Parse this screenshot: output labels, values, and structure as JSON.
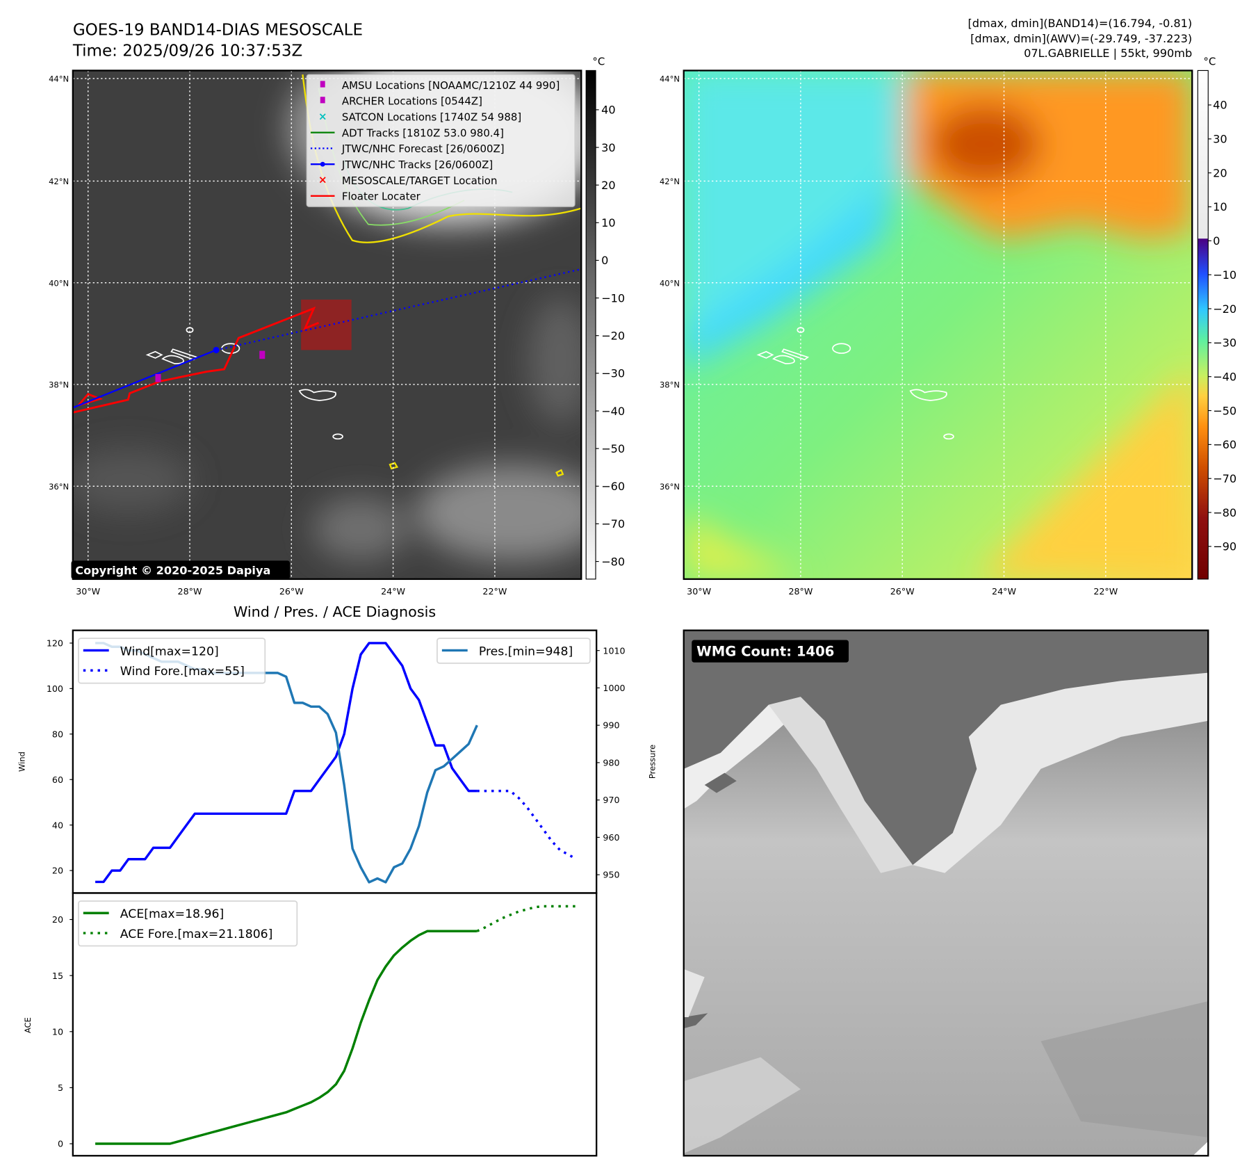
{
  "header": {
    "title": "GOES-19 BAND14-DIAS MESOSCALE",
    "time": "Time: 2025/09/26 10:37:53Z",
    "stats_band14": "[dmax, dmin](BAND14)=(16.794, -0.81)",
    "stats_awv": "[dmax, dmin](AWV)=(-29.749, -37.223)",
    "storm": "07L.GABRIELLE | 55kt, 990mb"
  },
  "maps": {
    "lat_labels": [
      "44°N",
      "42°N",
      "40°N",
      "38°N",
      "36°N"
    ],
    "lon_labels": [
      "30°W",
      "28°W",
      "26°W",
      "24°W",
      "22°W"
    ],
    "unit": "°C",
    "colorbar_left_ticks": [
      "40",
      "30",
      "20",
      "10",
      "0",
      "−10",
      "−20",
      "−30",
      "−40",
      "−50",
      "−60",
      "−70",
      "−80"
    ],
    "colorbar_right_ticks": [
      "40",
      "30",
      "20",
      "10",
      "0",
      "−10",
      "−20",
      "−30",
      "−40",
      "−50",
      "−60",
      "−70",
      "−80",
      "−90"
    ],
    "copyright": "Copyright © 2020-2025 Dapiya",
    "legend": [
      {
        "label": "AMSU Locations [NOAAMC/1210Z 44 990]",
        "color": "#c000c0",
        "marker": "square"
      },
      {
        "label": "ARCHER Locations [0544Z]",
        "color": "#c000c0",
        "marker": "square"
      },
      {
        "label": "SATCON Locations [1740Z 54 988]",
        "color": "#00bfbf",
        "marker": "x"
      },
      {
        "label": "ADT Tracks [1810Z 53.0 980.4]",
        "color": "#008000",
        "marker": "line"
      },
      {
        "label": "JTWC/NHC Forecast [26/0600Z]",
        "color": "#0000ff",
        "marker": "dotted"
      },
      {
        "label": "JTWC/NHC Tracks [26/0600Z]",
        "color": "#0000ff",
        "marker": "line-dot"
      },
      {
        "label": "MESOSCALE/TARGET Location",
        "color": "#ff0000",
        "marker": "x"
      },
      {
        "label": "Floater Locater",
        "color": "#ff0000",
        "marker": "line"
      }
    ]
  },
  "wmg": {
    "label": "WMG Count: 1406"
  },
  "chart_data": [
    {
      "type": "line",
      "title": "Wind / Pres. / ACE Diagnosis",
      "ylabel": "Wind",
      "y2label": "Pressure",
      "ylim": [
        10.1,
        125.6
      ],
      "y2lim": [
        945.1,
        1015.4
      ],
      "xlim": [
        -2.7,
        60.4
      ],
      "yticks": [
        20,
        40,
        60,
        80,
        100,
        120
      ],
      "y2ticks": [
        950,
        960,
        970,
        980,
        990,
        1000,
        1010
      ],
      "series": [
        {
          "name": "Wind[max=120]",
          "color": "#0000ff",
          "style": "solid",
          "axis": "left",
          "x0": 0,
          "values": [
            15,
            15,
            20,
            20,
            25,
            25,
            25,
            30,
            30,
            30,
            35,
            40,
            45,
            45,
            45,
            45,
            45,
            45,
            45,
            45,
            45,
            45,
            45,
            45,
            55,
            55,
            55,
            60,
            65,
            70,
            80,
            100,
            115,
            120,
            120,
            120,
            115,
            110,
            100,
            95,
            85,
            75,
            75,
            65,
            60,
            55,
            55
          ]
        },
        {
          "name": "Wind Fore.[max=55]",
          "color": "#0000ff",
          "style": "dotted",
          "axis": "left",
          "x0": 46,
          "values": [
            55,
            55,
            55,
            55,
            55,
            52,
            48,
            43,
            38,
            33,
            29,
            27,
            25
          ]
        },
        {
          "name": "Pres.[min=948]",
          "color": "#1f77b4",
          "style": "solid",
          "axis": "right",
          "x0": 0,
          "values": [
            1012,
            1012,
            1011,
            1011,
            1010,
            1010,
            1009,
            1008,
            1007,
            1007,
            1007,
            1006,
            1005,
            1005,
            1004,
            1004,
            1004,
            1004,
            1004,
            1004,
            1004,
            1004,
            1004,
            1003,
            996,
            996,
            995,
            995,
            993,
            988,
            974,
            957,
            952,
            948,
            949,
            948,
            952,
            953,
            957,
            963,
            972,
            978,
            979,
            981,
            983,
            985,
            990
          ]
        }
      ]
    },
    {
      "type": "line",
      "ylabel": "ACE",
      "ylim": [
        -1.07,
        22.36
      ],
      "xlim": [
        -2.7,
        60.4
      ],
      "yticks": [
        0,
        5,
        10,
        15,
        20
      ],
      "series": [
        {
          "name": "ACE[max=18.96]",
          "color": "#008000",
          "style": "solid",
          "x0": 0,
          "values": [
            0,
            0,
            0,
            0,
            0,
            0,
            0,
            0,
            0,
            0,
            0.2,
            0.4,
            0.6,
            0.8,
            1.0,
            1.2,
            1.4,
            1.6,
            1.8,
            2.0,
            2.2,
            2.4,
            2.6,
            2.8,
            3.1,
            3.4,
            3.7,
            4.1,
            4.6,
            5.3,
            6.5,
            8.5,
            10.8,
            12.8,
            14.6,
            15.8,
            16.8,
            17.5,
            18.1,
            18.6,
            18.96,
            18.96,
            18.96,
            18.96,
            18.96,
            18.96,
            18.96
          ]
        },
        {
          "name": "ACE Fore.[max=21.1806]",
          "color": "#008000",
          "style": "dotted",
          "x0": 46,
          "values": [
            18.96,
            19.3,
            19.7,
            20.1,
            20.4,
            20.7,
            20.9,
            21.1,
            21.18,
            21.18,
            21.18,
            21.18,
            21.18
          ]
        }
      ]
    }
  ]
}
